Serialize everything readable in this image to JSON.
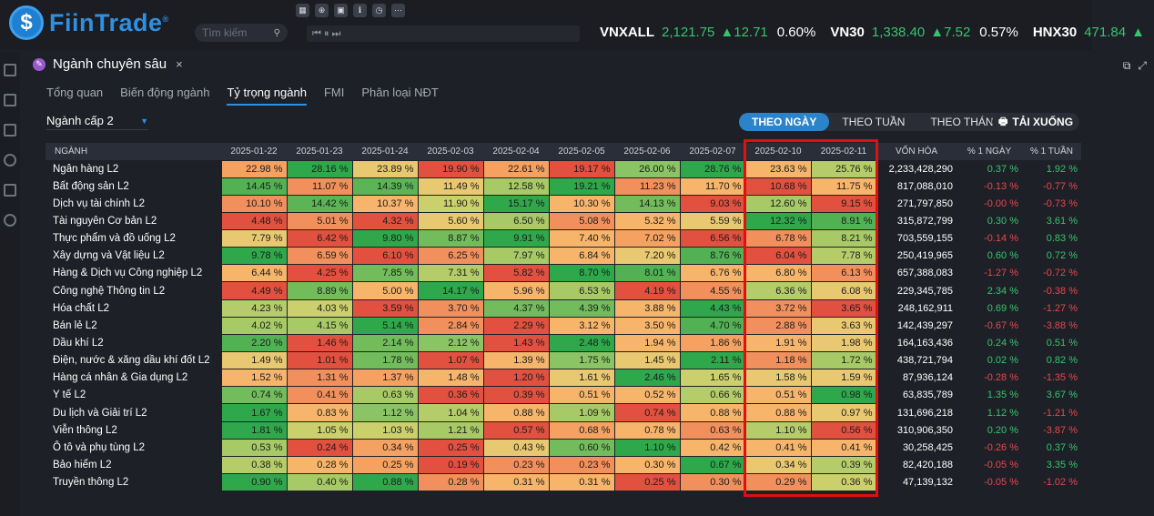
{
  "header": {
    "logo_icon": "fiintrade-logo-icon",
    "logo_text": "FiinTrade",
    "logo_reg": "®",
    "search_placeholder": "Tìm kiếm",
    "toolbar_icons": [
      "grid-icon",
      "zoom-icon",
      "calendar-icon",
      "info-icon",
      "clock-icon",
      "more-icon"
    ],
    "media_controls": "⏮ ⏸ ⏭",
    "tickers": [
      {
        "name": "VNXALL",
        "value": "2,121.75",
        "change": "▲12.71",
        "pct": "0.60%"
      },
      {
        "name": "VN30",
        "value": "1,338.40",
        "change": "▲7.52",
        "pct": "0.57%"
      },
      {
        "name": "HNX30",
        "value": "471.84",
        "change": "▲",
        "pct": ""
      }
    ]
  },
  "panel": {
    "title": "Ngành chuyên sâu",
    "close": "×"
  },
  "subtabs": [
    "Tổng quan",
    "Biến động ngành",
    "Tỷ trọng ngành",
    "FMI",
    "Phân loại NĐT"
  ],
  "active_subtab": 2,
  "level_select": "Ngành cấp 2",
  "period_buttons": [
    "THEO NGÀY",
    "THEO TUẦN",
    "THEO THÁNG"
  ],
  "active_period": 0,
  "download_label": "TẢI XUỐNG",
  "table": {
    "col_industry": "NGÀNH",
    "dates": [
      "2025-01-22",
      "2025-01-23",
      "2025-01-24",
      "2025-02-03",
      "2025-02-04",
      "2025-02-05",
      "2025-02-06",
      "2025-02-07",
      "2025-02-10",
      "2025-02-11"
    ],
    "col_cap": "VỐN HÓA",
    "col_1d": "% 1 NGÀY",
    "col_1w": "% 1 TUẦN",
    "rows": [
      {
        "name": "Ngân hàng L2",
        "values": [
          "22.98 %",
          "28.16 %",
          "23.89 %",
          "19.90 %",
          "22.61 %",
          "19.17 %",
          "26.00 %",
          "28.76 %",
          "23.63 %",
          "25.76 %"
        ],
        "colors": [
          "#f4a162",
          "#2ea84a",
          "#e8c870",
          "#e2503f",
          "#f4a162",
          "#e2503f",
          "#8ac465",
          "#2ea84a",
          "#f6b56b",
          "#b5cc6a"
        ],
        "cap": "2,233,428,290",
        "d1": "0.37 %",
        "w1": "1.92 %"
      },
      {
        "name": "Bất động sản L2",
        "values": [
          "14.45 %",
          "11.07 %",
          "14.39 %",
          "11.49 %",
          "12.58 %",
          "19.21 %",
          "11.23 %",
          "11.70 %",
          "10.68 %",
          "11.75 %"
        ],
        "colors": [
          "#52b153",
          "#f1905c",
          "#5bb456",
          "#e8c870",
          "#a7c966",
          "#2ea84a",
          "#f1905c",
          "#f6b56b",
          "#e2503f",
          "#f6b56b"
        ],
        "cap": "817,088,010",
        "d1": "-0.13 %",
        "w1": "-0.77 %"
      },
      {
        "name": "Dịch vụ tài chính L2",
        "values": [
          "10.10 %",
          "14.42 %",
          "10.37 %",
          "11.90 %",
          "15.17 %",
          "10.30 %",
          "14.13 %",
          "9.03 %",
          "12.60 %",
          "9.15 %"
        ],
        "colors": [
          "#f1905c",
          "#5bb456",
          "#f6b56b",
          "#cbd06c",
          "#2ea84a",
          "#f6b56b",
          "#72bc5c",
          "#e2503f",
          "#a7c966",
          "#e2503f"
        ],
        "cap": "271,797,850",
        "d1": "-0.00 %",
        "w1": "-0.73 %"
      },
      {
        "name": "Tài nguyên Cơ bản L2",
        "values": [
          "4.48 %",
          "5.01 %",
          "4.32 %",
          "5.60 %",
          "6.50 %",
          "5.08 %",
          "5.32 %",
          "5.59 %",
          "12.32 %",
          "8.91 %"
        ],
        "colors": [
          "#e2503f",
          "#f1905c",
          "#e2503f",
          "#e8c870",
          "#a7c966",
          "#f1905c",
          "#f6b56b",
          "#e8c870",
          "#2ea84a",
          "#52b153"
        ],
        "cap": "315,872,799",
        "d1": "0.30 %",
        "w1": "3.61 %"
      },
      {
        "name": "Thực phẩm và đồ uống L2",
        "values": [
          "7.79 %",
          "6.42 %",
          "9.80 %",
          "8.87 %",
          "9.91 %",
          "7.40 %",
          "7.02 %",
          "6.56 %",
          "6.78 %",
          "8.21 %"
        ],
        "colors": [
          "#e8c870",
          "#e2503f",
          "#2ea84a",
          "#72bc5c",
          "#2ea84a",
          "#f6b56b",
          "#f4a162",
          "#e2503f",
          "#f1905c",
          "#a7c966"
        ],
        "cap": "703,559,155",
        "d1": "-0.14 %",
        "w1": "0.83 %"
      },
      {
        "name": "Xây dựng và Vật liệu L2",
        "values": [
          "9.78 %",
          "6.59 %",
          "6.10 %",
          "6.25 %",
          "7.97 %",
          "6.84 %",
          "7.20 %",
          "8.76 %",
          "6.04 %",
          "7.78 %"
        ],
        "colors": [
          "#2ea84a",
          "#f1905c",
          "#e2503f",
          "#f1905c",
          "#a7c966",
          "#f6b56b",
          "#e8c870",
          "#52b153",
          "#e2503f",
          "#b5cc6a"
        ],
        "cap": "250,419,965",
        "d1": "0.60 %",
        "w1": "0.72 %"
      },
      {
        "name": "Hàng & Dịch vụ Công nghiệp L2",
        "values": [
          "6.44 %",
          "4.25 %",
          "7.85 %",
          "7.31 %",
          "5.82 %",
          "8.70 %",
          "8.01 %",
          "6.76 %",
          "6.80 %",
          "6.13 %"
        ],
        "colors": [
          "#f6b56b",
          "#e2503f",
          "#72bc5c",
          "#b5cc6a",
          "#e2503f",
          "#2ea84a",
          "#52b153",
          "#f6b56b",
          "#f6b56b",
          "#f1905c"
        ],
        "cap": "657,388,083",
        "d1": "-1.27 %",
        "w1": "-0.72 %"
      },
      {
        "name": "Công nghệ Thông tin L2",
        "values": [
          "4.49 %",
          "8.89 %",
          "5.00 %",
          "14.17 %",
          "5.96 %",
          "6.53 %",
          "4.19 %",
          "4.55 %",
          "6.36 %",
          "6.08 %"
        ],
        "colors": [
          "#e2503f",
          "#72bc5c",
          "#f6b56b",
          "#2ea84a",
          "#f6b56b",
          "#a7c966",
          "#e2503f",
          "#f1905c",
          "#b5cc6a",
          "#e8c870"
        ],
        "cap": "229,345,785",
        "d1": "2.34 %",
        "w1": "-0.38 %"
      },
      {
        "name": "Hóa chất L2",
        "values": [
          "4.23 %",
          "4.03 %",
          "3.59 %",
          "3.70 %",
          "4.37 %",
          "4.39 %",
          "3.88 %",
          "4.43 %",
          "3.72 %",
          "3.65 %"
        ],
        "colors": [
          "#b5cc6a",
          "#cbd06c",
          "#e2503f",
          "#f1905c",
          "#72bc5c",
          "#72bc5c",
          "#f6b56b",
          "#2ea84a",
          "#f1905c",
          "#e2503f"
        ],
        "cap": "248,162,911",
        "d1": "0.69 %",
        "w1": "-1.27 %"
      },
      {
        "name": "Bán lẻ L2",
        "values": [
          "4.02 %",
          "4.15 %",
          "5.14 %",
          "2.84 %",
          "2.29 %",
          "3.12 %",
          "3.50 %",
          "4.70 %",
          "2.88 %",
          "3.63 %"
        ],
        "colors": [
          "#a7c966",
          "#a7c966",
          "#2ea84a",
          "#f1905c",
          "#e2503f",
          "#f6b56b",
          "#f6b56b",
          "#52b153",
          "#f1905c",
          "#e8c870"
        ],
        "cap": "142,439,297",
        "d1": "-0.67 %",
        "w1": "-3.88 %"
      },
      {
        "name": "Dầu khí L2",
        "values": [
          "2.20 %",
          "1.46 %",
          "2.14 %",
          "2.12 %",
          "1.43 %",
          "2.48 %",
          "1.94 %",
          "1.86 %",
          "1.91 %",
          "1.98 %"
        ],
        "colors": [
          "#52b153",
          "#e2503f",
          "#72bc5c",
          "#8ac465",
          "#e2503f",
          "#2ea84a",
          "#f6b56b",
          "#f4a162",
          "#f6b56b",
          "#e8c870"
        ],
        "cap": "164,163,436",
        "d1": "0.24 %",
        "w1": "0.51 %"
      },
      {
        "name": "Điện, nước & xăng dầu khí đốt L2",
        "values": [
          "1.49 %",
          "1.01 %",
          "1.78 %",
          "1.07 %",
          "1.39 %",
          "1.75 %",
          "1.45 %",
          "2.11 %",
          "1.18 %",
          "1.72 %"
        ],
        "colors": [
          "#e8c870",
          "#e2503f",
          "#72bc5c",
          "#e2503f",
          "#f6b56b",
          "#8ac465",
          "#e8c870",
          "#2ea84a",
          "#f1905c",
          "#a7c966"
        ],
        "cap": "438,721,794",
        "d1": "0.02 %",
        "w1": "0.82 %"
      },
      {
        "name": "Hàng cá nhân & Gia dụng L2",
        "values": [
          "1.52 %",
          "1.31 %",
          "1.37 %",
          "1.48 %",
          "1.20 %",
          "1.61 %",
          "2.46 %",
          "1.65 %",
          "1.58 %",
          "1.59 %"
        ],
        "colors": [
          "#f6b56b",
          "#f1905c",
          "#f4a162",
          "#f6b56b",
          "#e2503f",
          "#e8c870",
          "#2ea84a",
          "#cbd06c",
          "#e8c870",
          "#e8c870"
        ],
        "cap": "87,936,124",
        "d1": "-0.28 %",
        "w1": "-1.35 %"
      },
      {
        "name": "Y tế L2",
        "values": [
          "0.74 %",
          "0.41 %",
          "0.63 %",
          "0.36 %",
          "0.39 %",
          "0.51 %",
          "0.52 %",
          "0.66 %",
          "0.51 %",
          "0.98 %"
        ],
        "colors": [
          "#72bc5c",
          "#f1905c",
          "#a7c966",
          "#e2503f",
          "#e2503f",
          "#f6b56b",
          "#f6b56b",
          "#b5cc6a",
          "#f6b56b",
          "#2ea84a"
        ],
        "cap": "63,835,789",
        "d1": "1.35 %",
        "w1": "3.67 %"
      },
      {
        "name": "Du lịch và Giải trí L2",
        "values": [
          "1.67 %",
          "0.83 %",
          "1.12 %",
          "1.04 %",
          "0.88 %",
          "1.09 %",
          "0.74 %",
          "0.88 %",
          "0.88 %",
          "0.97 %"
        ],
        "colors": [
          "#2ea84a",
          "#f6b56b",
          "#8ac465",
          "#b5cc6a",
          "#f6b56b",
          "#a7c966",
          "#e2503f",
          "#f6b56b",
          "#f6b56b",
          "#e8c870"
        ],
        "cap": "131,696,218",
        "d1": "1.12 %",
        "w1": "-1.21 %"
      },
      {
        "name": "Viễn thông L2",
        "values": [
          "1.81 %",
          "1.05 %",
          "1.03 %",
          "1.21 %",
          "0.57 %",
          "0.68 %",
          "0.78 %",
          "0.63 %",
          "1.10 %",
          "0.56 %"
        ],
        "colors": [
          "#2ea84a",
          "#cbd06c",
          "#cbd06c",
          "#a7c966",
          "#e2503f",
          "#f4a162",
          "#f6b56b",
          "#f1905c",
          "#b5cc6a",
          "#e2503f"
        ],
        "cap": "310,906,350",
        "d1": "0.20 %",
        "w1": "-3.87 %"
      },
      {
        "name": "Ô tô và phụ tùng L2",
        "values": [
          "0.53 %",
          "0.24 %",
          "0.34 %",
          "0.25 %",
          "0.43 %",
          "0.60 %",
          "1.10 %",
          "0.42 %",
          "0.41 %",
          "0.41 %"
        ],
        "colors": [
          "#a7c966",
          "#e2503f",
          "#f4a162",
          "#e2503f",
          "#e8c870",
          "#72bc5c",
          "#2ea84a",
          "#f6b56b",
          "#f6b56b",
          "#f6b56b"
        ],
        "cap": "30,258,425",
        "d1": "-0.26 %",
        "w1": "0.37 %"
      },
      {
        "name": "Bảo hiểm L2",
        "values": [
          "0.38 %",
          "0.28 %",
          "0.25 %",
          "0.19 %",
          "0.23 %",
          "0.23 %",
          "0.30 %",
          "0.67 %",
          "0.34 %",
          "0.39 %"
        ],
        "colors": [
          "#b5cc6a",
          "#f6b56b",
          "#f4a162",
          "#e2503f",
          "#f1905c",
          "#f1905c",
          "#f6b56b",
          "#2ea84a",
          "#e8c870",
          "#b5cc6a"
        ],
        "cap": "82,420,188",
        "d1": "-0.05 %",
        "w1": "3.35 %"
      },
      {
        "name": "Truyền thông L2",
        "values": [
          "0.90 %",
          "0.40 %",
          "0.88 %",
          "0.28 %",
          "0.31 %",
          "0.31 %",
          "0.25 %",
          "0.30 %",
          "0.29 %",
          "0.36 %"
        ],
        "colors": [
          "#2ea84a",
          "#a7c966",
          "#2ea84a",
          "#f1905c",
          "#f6b56b",
          "#f6b56b",
          "#e2503f",
          "#f1905c",
          "#f1905c",
          "#cbd06c"
        ],
        "cap": "47,139,132",
        "d1": "-0.05 %",
        "w1": "-1.02 %"
      }
    ]
  },
  "colors": {
    "accent": "#2f8fe0",
    "positive": "#36c46f",
    "negative": "#e5484d",
    "highlight_border": "#e01010"
  }
}
